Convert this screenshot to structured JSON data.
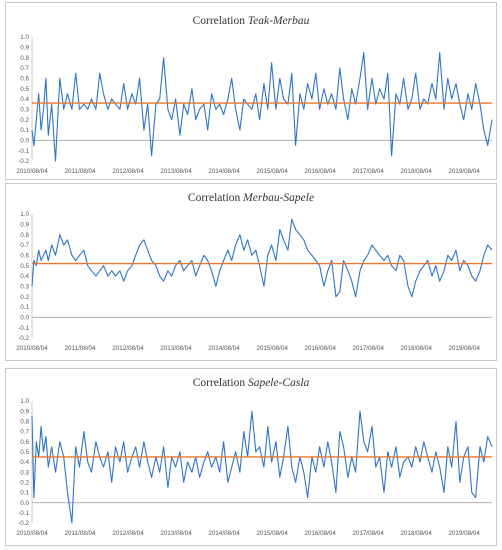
{
  "chart_data": [
    {
      "type": "line",
      "title_prefix": "Correlation",
      "title_pair": "Teak-Merbau",
      "ylim": [
        -0.2,
        1.0
      ],
      "yticks": [
        "-0.2",
        "-0.1",
        "0.0",
        "0.1",
        "0.2",
        "0.3",
        "0.4",
        "0.5",
        "0.6",
        "0.7",
        "0.8",
        "0.9",
        "1.0"
      ],
      "x_tick_labels": [
        "2010/08/04",
        "2011/08/04",
        "2012/08/04",
        "2013/08/04",
        "2014/08/04",
        "2015/08/04",
        "2016/08/04",
        "2017/08/04",
        "2018/08/04",
        "2019/08/04"
      ],
      "series": [
        {
          "color": "#2e75c3",
          "x": [
            2010.59,
            2010.63,
            2010.68,
            2010.73,
            2010.78,
            2010.83,
            2010.88,
            2010.93,
            2011.0,
            2011.08,
            2011.17,
            2011.25,
            2011.33,
            2011.42,
            2011.5,
            2011.58,
            2011.67,
            2011.75,
            2011.83,
            2011.92,
            2012.0,
            2012.08,
            2012.17,
            2012.25,
            2012.33,
            2012.42,
            2012.5,
            2012.58,
            2012.67,
            2012.75,
            2012.83,
            2012.92,
            2013.0,
            2013.08,
            2013.17,
            2013.25,
            2013.33,
            2013.42,
            2013.5,
            2013.58,
            2013.67,
            2013.75,
            2013.83,
            2013.92,
            2014.0,
            2014.08,
            2014.17,
            2014.25,
            2014.33,
            2014.42,
            2014.5,
            2014.58,
            2014.67,
            2014.75,
            2014.83,
            2014.92,
            2015.0,
            2015.08,
            2015.17,
            2015.25,
            2015.33,
            2015.42,
            2015.5,
            2015.58,
            2015.67,
            2015.75,
            2015.83,
            2015.92,
            2016.0,
            2016.08,
            2016.17,
            2016.25,
            2016.33,
            2016.42,
            2016.5,
            2016.58,
            2016.67,
            2016.75,
            2016.83,
            2016.92,
            2017.0,
            2017.08,
            2017.17,
            2017.25,
            2017.33,
            2017.42,
            2017.5,
            2017.58,
            2017.67,
            2017.75,
            2017.83,
            2017.92,
            2018.0,
            2018.08,
            2018.17,
            2018.25,
            2018.33,
            2018.42,
            2018.5,
            2018.58,
            2018.67,
            2018.75,
            2018.83,
            2018.92,
            2019.0,
            2019.08,
            2019.17,
            2019.25,
            2019.33,
            2019.42,
            2019.5,
            2019.58,
            2019.67,
            2019.75,
            2019.83,
            2019.92,
            2020.0,
            2020.08,
            2020.17
          ],
          "values": [
            0.1,
            -0.05,
            0.2,
            0.45,
            0.1,
            0.3,
            0.6,
            0.05,
            0.35,
            -0.2,
            0.6,
            0.3,
            0.45,
            0.3,
            0.65,
            0.3,
            0.35,
            0.3,
            0.4,
            0.3,
            0.65,
            0.45,
            0.3,
            0.4,
            0.35,
            0.3,
            0.55,
            0.3,
            0.45,
            0.35,
            0.6,
            0.1,
            0.35,
            -0.15,
            0.35,
            0.4,
            0.8,
            0.3,
            0.2,
            0.4,
            0.05,
            0.35,
            0.25,
            0.5,
            0.2,
            0.3,
            0.35,
            0.1,
            0.45,
            0.3,
            0.35,
            0.25,
            0.4,
            0.6,
            0.3,
            0.1,
            0.4,
            0.35,
            0.3,
            0.45,
            0.2,
            0.55,
            0.3,
            0.75,
            0.3,
            0.6,
            0.4,
            0.35,
            0.65,
            -0.05,
            0.45,
            0.3,
            0.55,
            0.4,
            0.65,
            0.3,
            0.5,
            0.35,
            0.45,
            0.3,
            0.7,
            0.4,
            0.2,
            0.5,
            0.35,
            0.6,
            0.85,
            0.3,
            0.6,
            0.35,
            0.5,
            0.4,
            0.65,
            -0.15,
            0.45,
            0.35,
            0.6,
            0.3,
            0.4,
            0.65,
            0.3,
            0.4,
            0.35,
            0.55,
            0.4,
            0.85,
            0.3,
            0.6,
            0.4,
            0.55,
            0.35,
            0.2,
            0.45,
            0.3,
            0.55,
            0.35,
            0.1,
            -0.05,
            0.2
          ]
        },
        {
          "color": "#e8762c",
          "x": [
            2010.59,
            2020.17
          ],
          "values": [
            0.36,
            0.36
          ]
        }
      ]
    },
    {
      "type": "line",
      "title_prefix": "Correlation",
      "title_pair": "Merbau-Sapele",
      "ylim": [
        -0.2,
        1.0
      ],
      "yticks": [
        "-0.2",
        "-0.1",
        "0.0",
        "0.1",
        "0.2",
        "0.3",
        "0.4",
        "0.5",
        "0.6",
        "0.7",
        "0.8",
        "0.9",
        "1.0"
      ],
      "x_tick_labels": [
        "2010/08/04",
        "2011/08/04",
        "2012/08/04",
        "2013/08/04",
        "2014/08/04",
        "2015/08/04",
        "2016/08/04",
        "2017/08/04",
        "2018/08/04",
        "2019/08/04"
      ],
      "series": [
        {
          "color": "#2e75c3",
          "x": [
            2010.59,
            2010.63,
            2010.68,
            2010.73,
            2010.78,
            2010.83,
            2010.88,
            2010.93,
            2011.0,
            2011.08,
            2011.17,
            2011.25,
            2011.33,
            2011.42,
            2011.5,
            2011.58,
            2011.67,
            2011.75,
            2011.83,
            2011.92,
            2012.0,
            2012.08,
            2012.17,
            2012.25,
            2012.33,
            2012.42,
            2012.5,
            2012.58,
            2012.67,
            2012.75,
            2012.83,
            2012.92,
            2013.0,
            2013.08,
            2013.17,
            2013.25,
            2013.33,
            2013.42,
            2013.5,
            2013.58,
            2013.67,
            2013.75,
            2013.83,
            2013.92,
            2014.0,
            2014.08,
            2014.17,
            2014.25,
            2014.33,
            2014.42,
            2014.5,
            2014.58,
            2014.67,
            2014.75,
            2014.83,
            2014.92,
            2015.0,
            2015.08,
            2015.17,
            2015.25,
            2015.33,
            2015.42,
            2015.5,
            2015.58,
            2015.67,
            2015.75,
            2015.83,
            2015.92,
            2016.0,
            2016.08,
            2016.17,
            2016.25,
            2016.33,
            2016.42,
            2016.5,
            2016.58,
            2016.67,
            2016.75,
            2016.83,
            2016.92,
            2017.0,
            2017.08,
            2017.17,
            2017.25,
            2017.33,
            2017.42,
            2017.5,
            2017.58,
            2017.67,
            2017.75,
            2017.83,
            2017.92,
            2018.0,
            2018.08,
            2018.17,
            2018.25,
            2018.33,
            2018.42,
            2018.5,
            2018.58,
            2018.67,
            2018.75,
            2018.83,
            2018.92,
            2019.0,
            2019.08,
            2019.17,
            2019.25,
            2019.33,
            2019.42,
            2019.5,
            2019.58,
            2019.67,
            2019.75,
            2019.83,
            2019.92,
            2020.0,
            2020.08,
            2020.17
          ],
          "values": [
            0.3,
            0.55,
            0.5,
            0.65,
            0.55,
            0.6,
            0.65,
            0.55,
            0.7,
            0.6,
            0.8,
            0.7,
            0.75,
            0.6,
            0.55,
            0.6,
            0.65,
            0.5,
            0.45,
            0.4,
            0.45,
            0.5,
            0.4,
            0.45,
            0.4,
            0.45,
            0.35,
            0.45,
            0.5,
            0.6,
            0.7,
            0.75,
            0.65,
            0.55,
            0.5,
            0.4,
            0.35,
            0.45,
            0.4,
            0.5,
            0.55,
            0.45,
            0.5,
            0.55,
            0.4,
            0.5,
            0.6,
            0.55,
            0.45,
            0.3,
            0.45,
            0.55,
            0.65,
            0.55,
            0.7,
            0.8,
            0.65,
            0.75,
            0.6,
            0.65,
            0.5,
            0.3,
            0.6,
            0.7,
            0.55,
            0.85,
            0.75,
            0.65,
            0.95,
            0.85,
            0.8,
            0.75,
            0.65,
            0.6,
            0.55,
            0.5,
            0.3,
            0.45,
            0.55,
            0.2,
            0.25,
            0.55,
            0.45,
            0.35,
            0.2,
            0.45,
            0.55,
            0.6,
            0.7,
            0.65,
            0.6,
            0.55,
            0.6,
            0.5,
            0.45,
            0.6,
            0.55,
            0.3,
            0.2,
            0.35,
            0.45,
            0.5,
            0.55,
            0.4,
            0.5,
            0.35,
            0.45,
            0.6,
            0.55,
            0.65,
            0.45,
            0.55,
            0.5,
            0.4,
            0.35,
            0.45,
            0.6,
            0.7,
            0.65
          ]
        },
        {
          "color": "#e8762c",
          "x": [
            2010.59,
            2020.17
          ],
          "values": [
            0.52,
            0.52
          ]
        }
      ]
    },
    {
      "type": "line",
      "title_prefix": "Correlation",
      "title_pair": "Sapele-Casla",
      "ylim": [
        -0.2,
        1.0
      ],
      "yticks": [
        "-0.2",
        "-0.1",
        "0.0",
        "0.1",
        "0.2",
        "0.3",
        "0.4",
        "0.5",
        "0.6",
        "0.7",
        "0.8",
        "0.9",
        "1.0"
      ],
      "x_tick_labels": [
        "2010/08/04",
        "2011/08/04",
        "2012/08/04",
        "2013/08/04",
        "2014/08/04",
        "2015/08/04",
        "2016/08/04",
        "2017/08/04",
        "2018/08/04",
        "2019/08/04"
      ],
      "series": [
        {
          "color": "#2e75c3",
          "x": [
            2010.59,
            2010.63,
            2010.68,
            2010.73,
            2010.78,
            2010.83,
            2010.88,
            2010.93,
            2011.0,
            2011.08,
            2011.17,
            2011.25,
            2011.33,
            2011.42,
            2011.5,
            2011.58,
            2011.67,
            2011.75,
            2011.83,
            2011.92,
            2012.0,
            2012.08,
            2012.17,
            2012.25,
            2012.33,
            2012.42,
            2012.5,
            2012.58,
            2012.67,
            2012.75,
            2012.83,
            2012.92,
            2013.0,
            2013.08,
            2013.17,
            2013.25,
            2013.33,
            2013.42,
            2013.5,
            2013.58,
            2013.67,
            2013.75,
            2013.83,
            2013.92,
            2014.0,
            2014.08,
            2014.17,
            2014.25,
            2014.33,
            2014.42,
            2014.5,
            2014.58,
            2014.67,
            2014.75,
            2014.83,
            2014.92,
            2015.0,
            2015.08,
            2015.17,
            2015.25,
            2015.33,
            2015.42,
            2015.5,
            2015.58,
            2015.67,
            2015.75,
            2015.83,
            2015.92,
            2016.0,
            2016.08,
            2016.17,
            2016.25,
            2016.33,
            2016.42,
            2016.5,
            2016.58,
            2016.67,
            2016.75,
            2016.83,
            2016.92,
            2017.0,
            2017.08,
            2017.17,
            2017.25,
            2017.33,
            2017.42,
            2017.5,
            2017.58,
            2017.67,
            2017.75,
            2017.83,
            2017.92,
            2018.0,
            2018.08,
            2018.17,
            2018.25,
            2018.33,
            2018.42,
            2018.5,
            2018.58,
            2018.67,
            2018.75,
            2018.83,
            2018.92,
            2019.0,
            2019.08,
            2019.17,
            2019.25,
            2019.33,
            2019.42,
            2019.5,
            2019.58,
            2019.67,
            2019.75,
            2019.83,
            2019.92,
            2020.0,
            2020.08,
            2020.17
          ],
          "values": [
            0.85,
            0.05,
            0.6,
            0.45,
            0.75,
            0.5,
            0.65,
            0.35,
            0.55,
            0.3,
            0.6,
            0.45,
            0.1,
            -0.2,
            0.55,
            0.35,
            0.7,
            0.4,
            0.3,
            0.6,
            0.45,
            0.35,
            0.5,
            0.2,
            0.55,
            0.4,
            0.6,
            0.3,
            0.45,
            0.55,
            0.35,
            0.6,
            0.4,
            0.25,
            0.45,
            0.3,
            0.55,
            0.15,
            0.45,
            0.35,
            0.5,
            0.2,
            0.4,
            0.3,
            0.45,
            0.25,
            0.4,
            0.5,
            0.35,
            0.45,
            0.3,
            0.6,
            0.2,
            0.35,
            0.5,
            0.3,
            0.7,
            0.45,
            0.9,
            0.5,
            0.55,
            0.35,
            0.75,
            0.4,
            0.6,
            0.25,
            0.45,
            0.75,
            0.35,
            0.2,
            0.45,
            0.3,
            0.05,
            0.45,
            0.3,
            0.55,
            0.35,
            0.6,
            0.4,
            0.1,
            0.7,
            0.55,
            0.25,
            0.45,
            0.3,
            0.9,
            0.6,
            0.5,
            0.75,
            0.35,
            0.45,
            0.1,
            0.5,
            0.35,
            0.55,
            0.25,
            0.4,
            0.45,
            0.35,
            0.55,
            0.4,
            0.6,
            0.45,
            0.3,
            0.5,
            0.35,
            0.1,
            0.55,
            0.35,
            0.8,
            0.2,
            0.45,
            0.55,
            0.1,
            0.05,
            0.55,
            0.4,
            0.65,
            0.55
          ]
        },
        {
          "color": "#e8762c",
          "x": [
            2010.59,
            2020.17
          ],
          "values": [
            0.45,
            0.45
          ]
        }
      ]
    }
  ]
}
